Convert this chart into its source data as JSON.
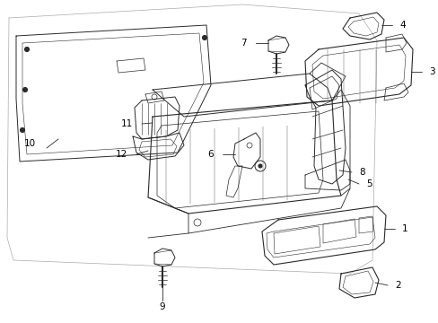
{
  "background_color": "#ffffff",
  "line_color": "#2a2a2a",
  "line_width": 0.8,
  "label_color": "#000000",
  "label_fontsize": 7.5,
  "fig_width": 4.89,
  "fig_height": 3.6,
  "dpi": 100
}
